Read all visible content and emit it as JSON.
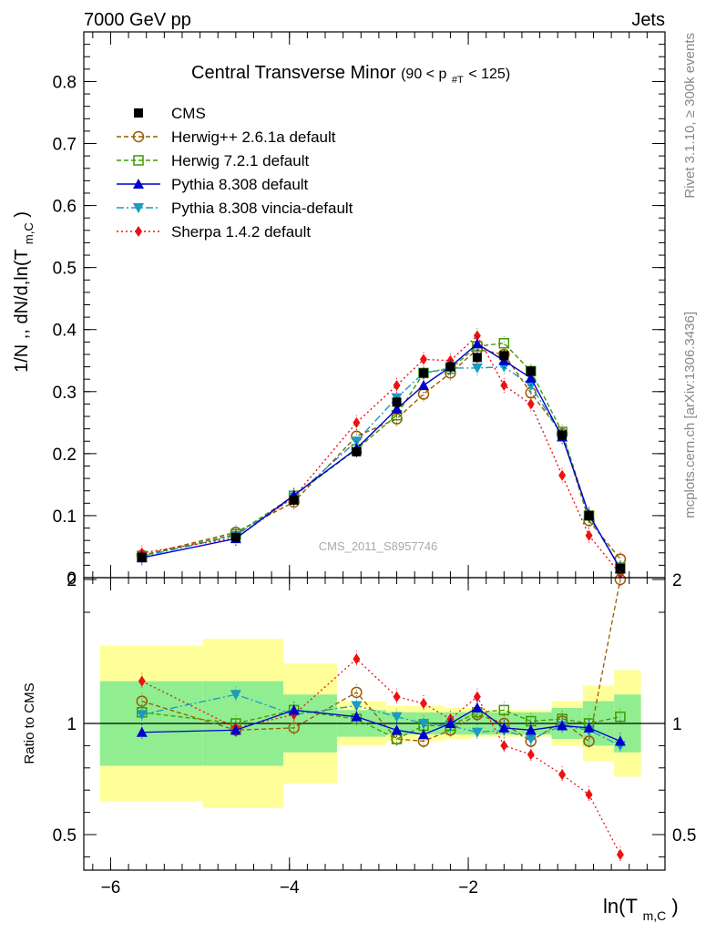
{
  "header": {
    "left": "7000 GeV pp",
    "right": "Jets"
  },
  "side_labels": {
    "rivet": "Rivet 3.1.10, ≥ 300k events",
    "mcplots": "mcplots.cern.ch [arXiv:1306.3436]"
  },
  "watermark": "CMS_2011_S8957746",
  "title_main": "Central Transverse Minor",
  "title_cut": "(90 < p",
  "title_cut_sub": "#T",
  "title_cut_end": " < 125)",
  "ylabel_main": "1/N ,, dN/d,ln(T",
  "ylabel_sub": "m,C",
  "ylabel_end": ")",
  "xlabel_main": "ln(T",
  "xlabel_sub": "m,C",
  "xlabel_end": ")",
  "ratio_label": "Ratio to CMS",
  "colors": {
    "cms": "#000000",
    "herwig_pp": "#9a5a00",
    "herwig7": "#3f9a00",
    "pythia": "#0000cc",
    "vincia": "#1a9bbf",
    "sherpa": "#ee1111",
    "band_inner": "#90ee90",
    "band_outer": "#ffff99"
  },
  "chart_data": {
    "type": "line",
    "x": [
      -5.65,
      -4.6,
      -3.95,
      -3.25,
      -2.8,
      -2.5,
      -2.2,
      -1.9,
      -1.6,
      -1.3,
      -0.95,
      -0.65,
      -0.3
    ],
    "xlim": [
      -6.3,
      0.2
    ],
    "ylim": [
      0,
      0.88
    ],
    "yticks": [
      0,
      0.1,
      0.2,
      0.3,
      0.4,
      0.5,
      0.6,
      0.7,
      0.8
    ],
    "ytick_labels": [
      "0",
      "0.1",
      "0.2",
      "0.3",
      "0.4",
      "0.5",
      "0.6",
      "0.7",
      "0.8"
    ],
    "xticks": [
      -6,
      -4,
      -2
    ],
    "xtick_labels": [
      "−6",
      "−4",
      "−2"
    ],
    "ratio_ylim": [
      0.35,
      2.3
    ],
    "ratio_yticks": [
      0.5,
      1,
      2
    ],
    "ratio_ytick_labels": [
      "0.5",
      "1",
      "2"
    ],
    "cms_bins": [
      [
        -6.2,
        -5.05
      ],
      [
        -5.05,
        -4.15
      ],
      [
        -4.15,
        -3.55
      ],
      [
        -3.55,
        -3.0
      ],
      [
        -3.0,
        -2.65
      ],
      [
        -2.65,
        -2.35
      ],
      [
        -2.35,
        -2.05
      ],
      [
        -2.05,
        -1.75
      ],
      [
        -1.75,
        -1.45
      ],
      [
        -1.45,
        -1.15
      ],
      [
        -1.15,
        -0.8
      ],
      [
        -0.8,
        -0.45
      ],
      [
        -0.45,
        -0.15
      ]
    ],
    "cms_band_inner": [
      0.19,
      0.19,
      0.13,
      0.06,
      0.05,
      0.05,
      0.05,
      0.05,
      0.05,
      0.05,
      0.07,
      0.1,
      0.13
    ],
    "cms_band_outer": [
      0.35,
      0.38,
      0.27,
      0.1,
      0.08,
      0.08,
      0.07,
      0.06,
      0.06,
      0.06,
      0.1,
      0.17,
      0.24
    ],
    "series": [
      {
        "name": "CMS",
        "key": "cms",
        "values": [
          0.033,
          0.065,
          0.125,
          0.203,
          0.283,
          0.33,
          0.34,
          0.355,
          0.358,
          0.333,
          0.23,
          0.1,
          0.015
        ],
        "ratio": [
          1,
          1,
          1,
          1,
          1,
          1,
          1,
          1,
          1,
          1,
          1,
          1,
          1
        ]
      },
      {
        "name": "Herwig++ 2.6.1a default",
        "key": "herwig_pp",
        "values": [
          0.036,
          0.073,
          0.122,
          0.228,
          0.256,
          0.296,
          0.33,
          0.368,
          0.36,
          0.298,
          0.232,
          0.092,
          0.03
        ],
        "ratio": [
          1.1,
          0.97,
          0.98,
          1.14,
          0.93,
          0.92,
          0.97,
          1.04,
          1.0,
          0.92,
          1.01,
          0.92,
          1.98
        ]
      },
      {
        "name": "Herwig 7.2.1 default",
        "key": "herwig7",
        "values": [
          0.035,
          0.07,
          0.132,
          0.207,
          0.262,
          0.33,
          0.337,
          0.373,
          0.378,
          0.333,
          0.235,
          0.1,
          0.016
        ],
        "ratio": [
          1.05,
          1.0,
          1.06,
          1.02,
          0.93,
          0.99,
          0.99,
          1.05,
          1.06,
          1.01,
          1.02,
          1.0,
          1.03
        ]
      },
      {
        "name": "Pythia 8.308 default",
        "key": "pythia",
        "values": [
          0.032,
          0.063,
          0.133,
          0.208,
          0.272,
          0.31,
          0.34,
          0.377,
          0.35,
          0.322,
          0.227,
          0.102,
          0.014
        ],
        "ratio": [
          0.96,
          0.97,
          1.06,
          1.03,
          0.97,
          0.95,
          1.0,
          1.07,
          0.98,
          0.97,
          0.99,
          0.98,
          0.92
        ]
      },
      {
        "name": "Pythia 8.308 vincia-default",
        "key": "vincia",
        "values": [
          0.034,
          0.068,
          0.13,
          0.22,
          0.29,
          0.33,
          0.338,
          0.338,
          0.34,
          0.31,
          0.228,
          0.099,
          0.015
        ],
        "ratio": [
          1.04,
          1.13,
          1.04,
          1.08,
          1.03,
          1.0,
          0.99,
          0.96,
          0.97,
          0.93,
          0.99,
          0.97,
          0.9
        ]
      },
      {
        "name": "Sherpa 1.4.2 default",
        "key": "sherpa",
        "values": [
          0.04,
          0.064,
          0.13,
          0.25,
          0.31,
          0.352,
          0.35,
          0.39,
          0.31,
          0.28,
          0.165,
          0.068,
          0.006
        ],
        "ratio": [
          1.19,
          0.98,
          1.04,
          1.29,
          1.12,
          1.09,
          1.02,
          1.12,
          0.9,
          0.86,
          0.77,
          0.68,
          0.41
        ]
      }
    ]
  }
}
